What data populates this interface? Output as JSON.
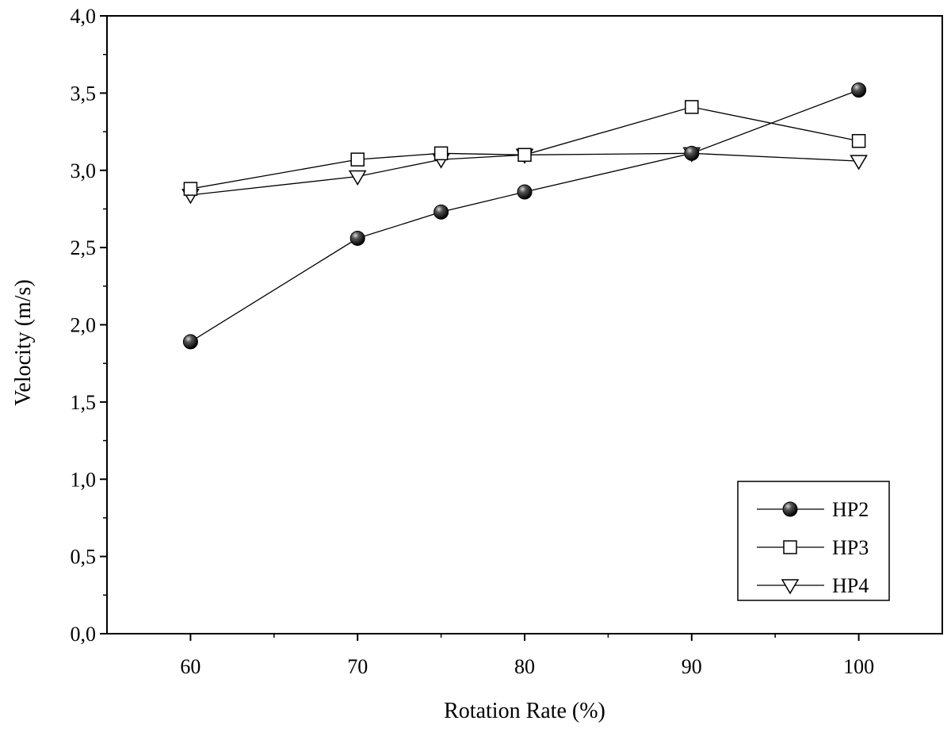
{
  "chart_data": {
    "type": "line",
    "xlabel": "Rotation Rate (%)",
    "ylabel": "Velocity (m/s)",
    "xlim": [
      55,
      105
    ],
    "ylim": [
      0,
      4
    ],
    "x_ticks": [
      60,
      70,
      80,
      90,
      100
    ],
    "x_minor_ticks": [
      65,
      75,
      85,
      95
    ],
    "y_ticks": [
      0,
      0.5,
      1,
      1.5,
      2,
      2.5,
      3,
      3.5,
      4
    ],
    "y_tick_labels": [
      "0,0",
      "0,5",
      "1,0",
      "1,5",
      "2,0",
      "2,5",
      "3,0",
      "3,5",
      "4,0"
    ],
    "x_tick_labels": [
      "60",
      "70",
      "80",
      "90",
      "100"
    ],
    "grid": false,
    "legend_position": "bottom-right",
    "series": [
      {
        "name": "HP2",
        "marker": "filled-circle",
        "color": "#000000",
        "x": [
          60,
          70,
          75,
          80,
          90,
          100
        ],
        "y": [
          1.89,
          2.56,
          2.73,
          2.86,
          3.11,
          3.52
        ]
      },
      {
        "name": "HP3",
        "marker": "open-square",
        "color": "#000000",
        "x": [
          60,
          70,
          75,
          80,
          90,
          100
        ],
        "y": [
          2.88,
          3.07,
          3.11,
          3.1,
          3.41,
          3.19
        ]
      },
      {
        "name": "HP4",
        "marker": "open-triangle-down",
        "color": "#000000",
        "x": [
          60,
          70,
          75,
          80,
          90,
          100
        ],
        "y": [
          2.84,
          2.96,
          3.07,
          3.1,
          3.11,
          3.06
        ]
      }
    ]
  }
}
